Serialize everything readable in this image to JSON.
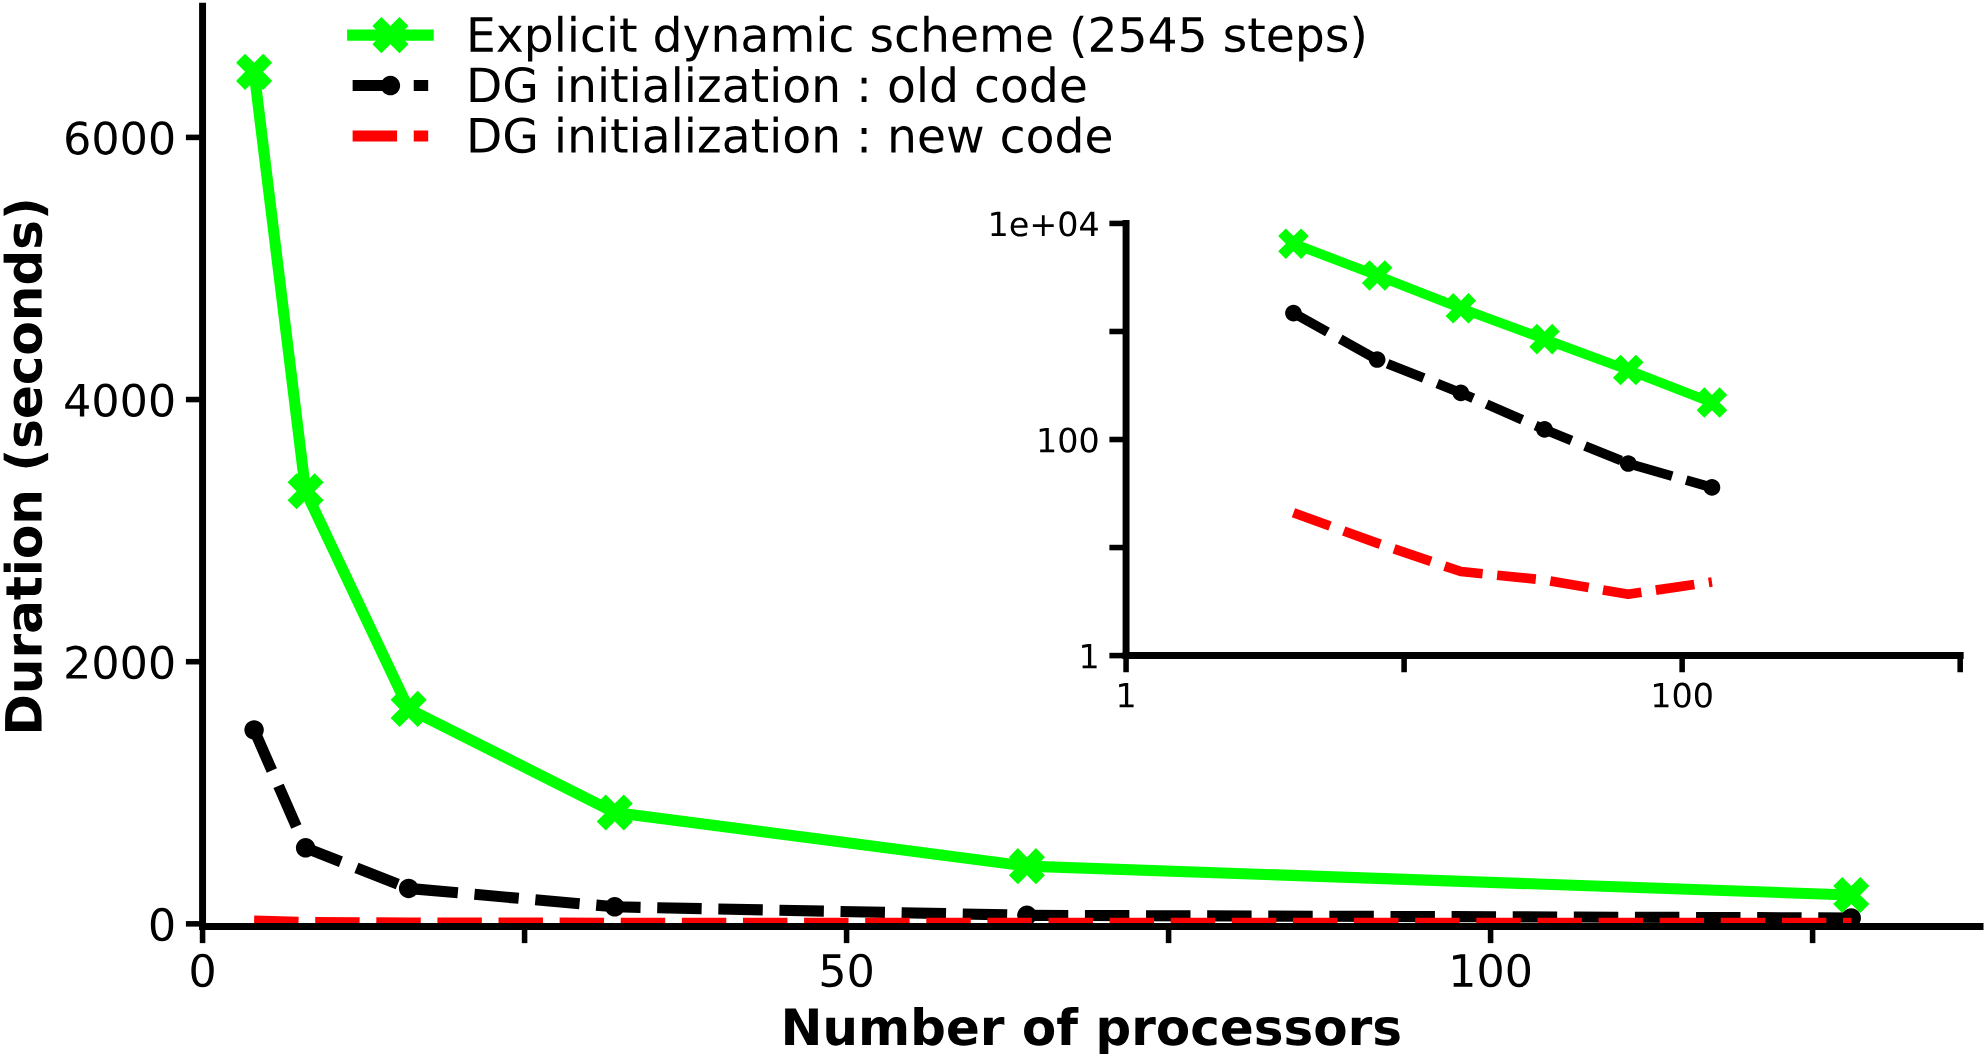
{
  "chart_data": [
    {
      "type": "line",
      "xlabel": "Number of processors",
      "ylabel": "Duration (seconds)",
      "x": [
        4,
        8,
        16,
        32,
        64,
        128
      ],
      "xlim": [
        0,
        138
      ],
      "ylim": [
        -20,
        7000
      ],
      "xticks": [
        0,
        {
          "value": 25,
          "label": null
        },
        50,
        {
          "value": 75,
          "label": null
        },
        100,
        {
          "value": 125,
          "label": null
        }
      ],
      "yticks": [
        0,
        2000,
        4000,
        6000
      ],
      "grid": false,
      "legend": "top",
      "series": [
        {
          "name": "Explicit dynamic scheme (2545 steps)",
          "color": "#00ff00",
          "marker": "cross",
          "line_style": "solid",
          "values": [
            6500,
            3300,
            1640,
            850,
            440,
            220
          ]
        },
        {
          "name": "DG initialization : old code",
          "color": "#000000",
          "marker": "circle",
          "line_style": "dashed",
          "values": [
            1480,
            580,
            270,
            130,
            65,
            45
          ]
        },
        {
          "name": "DG initialization : new code",
          "color": "#ff0000",
          "marker": "none",
          "line_style": "dashed",
          "values": [
            21,
            11,
            6,
            5,
            3.7,
            4.8
          ]
        }
      ]
    },
    {
      "type": "line",
      "log": "xy",
      "x": [
        4,
        8,
        16,
        32,
        64,
        128
      ],
      "xlim": [
        1,
        1000
      ],
      "ylim": [
        1,
        10000
      ],
      "xticks": [
        1,
        {
          "value": 10,
          "label": null
        },
        100,
        {
          "value": 1000,
          "label": null
        }
      ],
      "yticks": [
        1,
        {
          "value": 10,
          "label": null
        },
        100,
        {
          "value": 1000,
          "label": null
        },
        {
          "value": 10000,
          "label": "1e+04"
        }
      ],
      "grid": false,
      "series": [
        {
          "color": "#00ff00",
          "marker": "cross",
          "line_style": "solid",
          "values": [
            6500,
            3300,
            1640,
            850,
            440,
            220
          ]
        },
        {
          "color": "#000000",
          "marker": "circle",
          "line_style": "dashed",
          "values": [
            1480,
            550,
            270,
            124,
            60,
            36
          ]
        },
        {
          "color": "#ff0000",
          "marker": "none",
          "line_style": "dashed",
          "values": [
            21,
            11,
            6,
            5,
            3.7,
            4.8
          ]
        }
      ]
    }
  ]
}
